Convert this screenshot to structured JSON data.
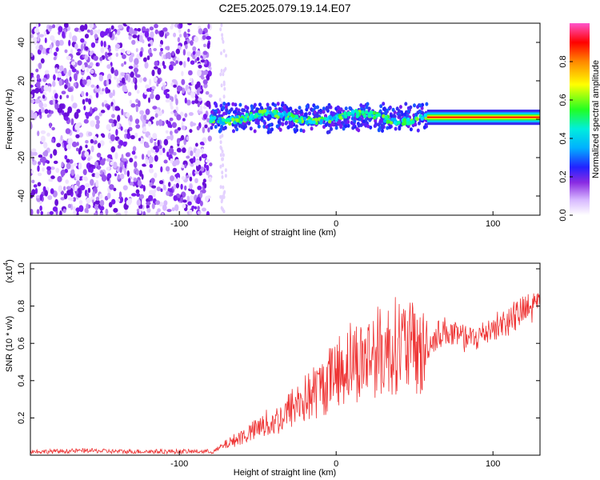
{
  "title": "C2E5.2025.079.19.14.E07",
  "colors": {
    "snr_line": "#ee3333",
    "heat_low": "#ffffff",
    "heat_purple": "#7a1cf0",
    "heat_blue": "#2222ff",
    "heat_cyan": "#00e0ff",
    "heat_green": "#33ff33",
    "heat_yellow": "#ffff00",
    "heat_red": "#ff0000",
    "heat_top": "#ff55cc"
  },
  "chart_data": [
    {
      "type": "heatmap",
      "title": "C2E5.2025.079.19.14.E07",
      "xlabel": "Height of straight line (km)",
      "ylabel": "Frequency (Hz)",
      "xlim": [
        -195,
        130
      ],
      "ylim": [
        -50,
        50
      ],
      "x_ticks": [
        -100,
        0,
        100
      ],
      "y_ticks": [
        -40,
        -20,
        0,
        20,
        40
      ],
      "colorbar": {
        "label": "Normalized spectral amplitude",
        "range": [
          0,
          1
        ],
        "ticks": [
          "0.0",
          "0.2",
          "0.4",
          "0.6",
          "0.8"
        ]
      },
      "regions": [
        {
          "x": [
            -195,
            -80
          ],
          "description": "broadband noise",
          "amplitude": 0.1
        },
        {
          "x": [
            -80,
            58
          ],
          "center_freq": 1,
          "amplitude": 0.45
        },
        {
          "x": [
            58,
            130
          ],
          "center_freq": 1,
          "amplitude": 0.9
        }
      ]
    },
    {
      "type": "line",
      "xlabel": "Height of straight line (km)",
      "ylabel": "SNR (10 * v/v)",
      "y_scale_label": "(x10",
      "y_scale_exp": "4",
      "xlim": [
        -195,
        130
      ],
      "ylim": [
        0,
        1.03
      ],
      "x_ticks": [
        -100,
        0,
        100
      ],
      "y_ticks": [
        "0.2",
        "0.4",
        "0.6",
        "0.8",
        "1.0"
      ],
      "series": [
        {
          "x": [
            -195,
            -180,
            -160,
            -140,
            -120,
            -100,
            -85,
            -78,
            -72,
            -65,
            -60,
            -55,
            -50,
            -45,
            -40,
            -35,
            -30,
            -25,
            -20,
            -15,
            -10,
            -5,
            0,
            5,
            10,
            15,
            20,
            25,
            30,
            35,
            40,
            45,
            50,
            55,
            60,
            65,
            70,
            75,
            80,
            85,
            90,
            95,
            100,
            105,
            110,
            115,
            120,
            125,
            130
          ],
          "y": [
            0.02,
            0.02,
            0.025,
            0.02,
            0.02,
            0.02,
            0.02,
            0.02,
            0.05,
            0.08,
            0.1,
            0.12,
            0.14,
            0.16,
            0.18,
            0.2,
            0.24,
            0.28,
            0.3,
            0.33,
            0.36,
            0.4,
            0.44,
            0.48,
            0.52,
            0.5,
            0.53,
            0.56,
            0.55,
            0.58,
            0.6,
            0.58,
            0.56,
            0.54,
            0.6,
            0.65,
            0.67,
            0.64,
            0.63,
            0.62,
            0.63,
            0.66,
            0.69,
            0.7,
            0.72,
            0.75,
            0.77,
            0.79,
            0.82
          ]
        }
      ]
    }
  ]
}
